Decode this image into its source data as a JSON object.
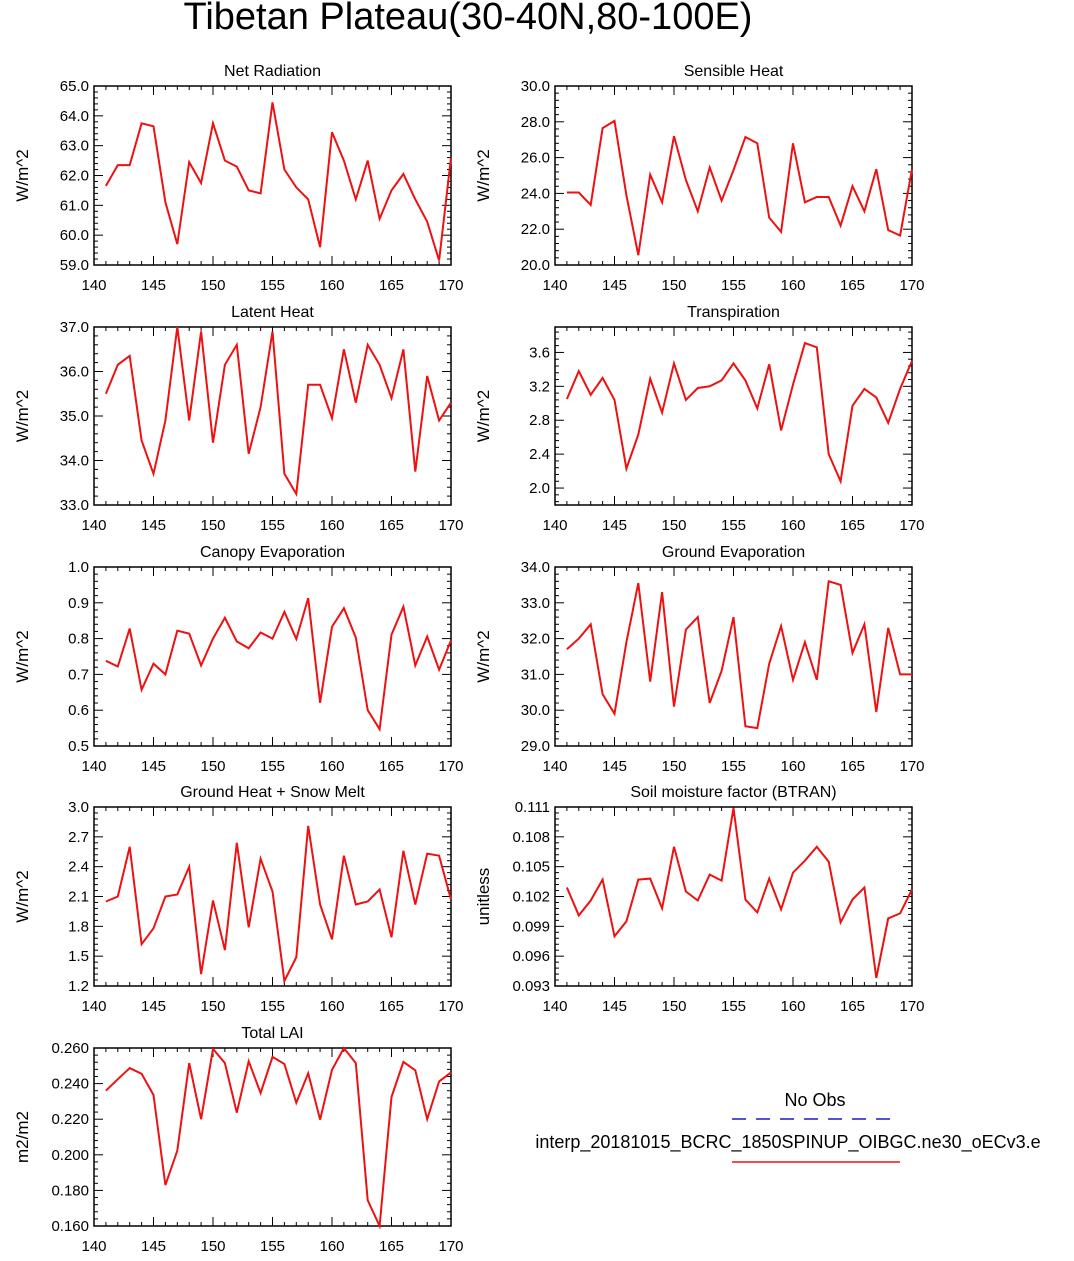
{
  "page_title": "Tibetan Plateau(30-40N,80-100E)",
  "colors": {
    "series": "#ee1111",
    "obs": "#1a1acc",
    "axis": "#000000"
  },
  "legend": {
    "obs_label": "No Obs",
    "model_label": "interp_20181015_BCRC_1850SPINUP_OIBGC.ne30_oECv3.e"
  },
  "chart_data": [
    {
      "type": "line",
      "title": "Net Radiation",
      "ylabel": "W/m^2",
      "xlim": [
        140,
        170
      ],
      "ylim": [
        59.0,
        65.0
      ],
      "yticks": [
        "59.0",
        "60.0",
        "61.0",
        "62.0",
        "63.0",
        "64.0",
        "65.0"
      ],
      "xticks": [
        "140",
        "145",
        "150",
        "155",
        "160",
        "165",
        "170"
      ],
      "x": [
        141,
        142,
        143,
        144,
        145,
        146,
        147,
        148,
        149,
        150,
        151,
        152,
        153,
        154,
        155,
        156,
        157,
        158,
        159,
        160,
        161,
        162,
        163,
        164,
        165,
        166,
        167,
        168,
        169,
        170
      ],
      "series": [
        {
          "name": "interp_20181015_BCRC_1850SPINUP_OIBGC.ne30_oECv3.e",
          "values": [
            61.65,
            62.35,
            62.35,
            63.75,
            63.65,
            61.1,
            59.7,
            62.45,
            61.75,
            63.75,
            62.5,
            62.3,
            61.5,
            61.4,
            64.45,
            62.2,
            61.6,
            61.2,
            59.6,
            63.45,
            62.5,
            61.2,
            62.5,
            60.55,
            61.5,
            62.05,
            61.2,
            60.45,
            59.15,
            62.6
          ]
        }
      ]
    },
    {
      "type": "line",
      "title": "Sensible Heat",
      "ylabel": "W/m^2",
      "xlim": [
        140,
        170
      ],
      "ylim": [
        20.0,
        30.0
      ],
      "yticks": [
        "20.0",
        "22.0",
        "24.0",
        "26.0",
        "28.0",
        "30.0"
      ],
      "xticks": [
        "140",
        "145",
        "150",
        "155",
        "160",
        "165",
        "170"
      ],
      "x": [
        141,
        142,
        143,
        144,
        145,
        146,
        147,
        148,
        149,
        150,
        151,
        152,
        153,
        154,
        155,
        156,
        157,
        158,
        159,
        160,
        161,
        162,
        163,
        164,
        165,
        166,
        167,
        168,
        169,
        170
      ],
      "series": [
        {
          "name": "interp_20181015_BCRC_1850SPINUP_OIBGC.ne30_oECv3.e",
          "values": [
            24.05,
            24.05,
            23.35,
            27.65,
            28.05,
            23.9,
            20.55,
            25.05,
            23.5,
            27.2,
            24.75,
            23.0,
            25.45,
            23.6,
            25.3,
            27.15,
            26.8,
            22.65,
            21.85,
            26.8,
            23.5,
            23.8,
            23.8,
            22.2,
            24.4,
            23.0,
            25.35,
            21.95,
            21.65,
            25.35
          ]
        }
      ]
    },
    {
      "type": "line",
      "title": "Latent Heat",
      "ylabel": "W/m^2",
      "xlim": [
        140,
        170
      ],
      "ylim": [
        33.0,
        37.0
      ],
      "yticks": [
        "33.0",
        "34.0",
        "35.0",
        "36.0",
        "37.0"
      ],
      "xticks": [
        "140",
        "145",
        "150",
        "155",
        "160",
        "165",
        "170"
      ],
      "x": [
        141,
        142,
        143,
        144,
        145,
        146,
        147,
        148,
        149,
        150,
        151,
        152,
        153,
        154,
        155,
        156,
        157,
        158,
        159,
        160,
        161,
        162,
        163,
        164,
        165,
        166,
        167,
        168,
        169,
        170
      ],
      "series": [
        {
          "name": "interp_20181015_BCRC_1850SPINUP_OIBGC.ne30_oECv3.e",
          "values": [
            35.5,
            36.15,
            36.35,
            34.45,
            33.7,
            34.9,
            37.0,
            34.9,
            36.9,
            34.4,
            36.15,
            36.6,
            34.15,
            35.2,
            36.9,
            33.7,
            33.25,
            35.7,
            35.7,
            34.95,
            36.5,
            35.3,
            36.6,
            36.15,
            35.4,
            36.5,
            33.75,
            35.9,
            34.9,
            35.3
          ]
        }
      ]
    },
    {
      "type": "line",
      "title": "Transpiration",
      "ylabel": "W/m^2",
      "xlim": [
        140,
        170
      ],
      "ylim": [
        1.8,
        3.9
      ],
      "yticks": [
        "2.0",
        "2.4",
        "2.8",
        "3.2",
        "3.6"
      ],
      "xticks": [
        "140",
        "145",
        "150",
        "155",
        "160",
        "165",
        "170"
      ],
      "x": [
        141,
        142,
        143,
        144,
        145,
        146,
        147,
        148,
        149,
        150,
        151,
        152,
        153,
        154,
        155,
        156,
        157,
        158,
        159,
        160,
        161,
        162,
        163,
        164,
        165,
        166,
        167,
        168,
        169,
        170
      ],
      "series": [
        {
          "name": "interp_20181015_BCRC_1850SPINUP_OIBGC.ne30_oECv3.e",
          "values": [
            3.05,
            3.38,
            3.1,
            3.3,
            3.04,
            2.23,
            2.63,
            3.29,
            2.89,
            3.47,
            3.04,
            3.18,
            3.2,
            3.27,
            3.47,
            3.27,
            2.94,
            3.46,
            2.68,
            3.22,
            3.71,
            3.66,
            2.4,
            2.08,
            2.97,
            3.17,
            3.07,
            2.77,
            3.17,
            3.5
          ]
        }
      ]
    },
    {
      "type": "line",
      "title": "Canopy Evaporation",
      "ylabel": "W/m^2",
      "xlim": [
        140,
        170
      ],
      "ylim": [
        0.5,
        1.0
      ],
      "yticks": [
        "0.5",
        "0.6",
        "0.7",
        "0.8",
        "0.9",
        "1.0"
      ],
      "xticks": [
        "140",
        "145",
        "150",
        "155",
        "160",
        "165",
        "170"
      ],
      "x": [
        141,
        142,
        143,
        144,
        145,
        146,
        147,
        148,
        149,
        150,
        151,
        152,
        153,
        154,
        155,
        156,
        157,
        158,
        159,
        160,
        161,
        162,
        163,
        164,
        165,
        166,
        167,
        168,
        169,
        170
      ],
      "series": [
        {
          "name": "interp_20181015_BCRC_1850SPINUP_OIBGC.ne30_oECv3.e",
          "values": [
            0.738,
            0.722,
            0.828,
            0.657,
            0.73,
            0.7,
            0.822,
            0.814,
            0.725,
            0.8,
            0.858,
            0.792,
            0.773,
            0.817,
            0.8,
            0.875,
            0.799,
            0.913,
            0.621,
            0.833,
            0.885,
            0.803,
            0.6,
            0.547,
            0.811,
            0.889,
            0.725,
            0.806,
            0.713,
            0.795
          ]
        }
      ]
    },
    {
      "type": "line",
      "title": "Ground Evaporation",
      "ylabel": "W/m^2",
      "xlim": [
        140,
        170
      ],
      "ylim": [
        29.0,
        34.0
      ],
      "yticks": [
        "29.0",
        "30.0",
        "31.0",
        "32.0",
        "33.0",
        "34.0"
      ],
      "xticks": [
        "140",
        "145",
        "150",
        "155",
        "160",
        "165",
        "170"
      ],
      "x": [
        141,
        142,
        143,
        144,
        145,
        146,
        147,
        148,
        149,
        150,
        151,
        152,
        153,
        154,
        155,
        156,
        157,
        158,
        159,
        160,
        161,
        162,
        163,
        164,
        165,
        166,
        167,
        168,
        169,
        170
      ],
      "series": [
        {
          "name": "interp_20181015_BCRC_1850SPINUP_OIBGC.ne30_oECv3.e",
          "values": [
            31.7,
            32.0,
            32.4,
            30.45,
            29.9,
            31.9,
            33.55,
            30.8,
            33.3,
            30.1,
            32.25,
            32.6,
            30.2,
            31.1,
            32.6,
            29.55,
            29.5,
            31.3,
            32.35,
            30.85,
            31.9,
            30.85,
            33.6,
            33.5,
            31.6,
            32.4,
            29.95,
            32.3,
            31.0,
            31.0
          ]
        }
      ]
    },
    {
      "type": "line",
      "title": "Ground Heat + Snow Melt",
      "ylabel": "W/m^2",
      "xlim": [
        140,
        170
      ],
      "ylim": [
        1.2,
        3.0
      ],
      "yticks": [
        "1.2",
        "1.5",
        "1.8",
        "2.1",
        "2.4",
        "2.7",
        "3.0"
      ],
      "xticks": [
        "140",
        "145",
        "150",
        "155",
        "160",
        "165",
        "170"
      ],
      "x": [
        141,
        142,
        143,
        144,
        145,
        146,
        147,
        148,
        149,
        150,
        151,
        152,
        153,
        154,
        155,
        156,
        157,
        158,
        159,
        160,
        161,
        162,
        163,
        164,
        165,
        166,
        167,
        168,
        169,
        170
      ],
      "series": [
        {
          "name": "interp_20181015_BCRC_1850SPINUP_OIBGC.ne30_oECv3.e",
          "values": [
            2.05,
            2.1,
            2.6,
            1.62,
            1.78,
            2.1,
            2.12,
            2.4,
            1.32,
            2.06,
            1.56,
            2.64,
            1.79,
            2.48,
            2.15,
            1.25,
            1.49,
            2.81,
            2.02,
            1.67,
            2.51,
            2.02,
            2.05,
            2.17,
            1.69,
            2.56,
            2.02,
            2.53,
            2.51,
            2.07
          ]
        }
      ]
    },
    {
      "type": "line",
      "title": "Soil moisture factor (BTRAN)",
      "ylabel": "unitless",
      "xlim": [
        140,
        170
      ],
      "ylim": [
        0.093,
        0.111
      ],
      "yticks": [
        "0.093",
        "0.096",
        "0.099",
        "0.102",
        "0.105",
        "0.108",
        "0.111"
      ],
      "xticks": [
        "140",
        "145",
        "150",
        "155",
        "160",
        "165",
        "170"
      ],
      "x": [
        141,
        142,
        143,
        144,
        145,
        146,
        147,
        148,
        149,
        150,
        151,
        152,
        153,
        154,
        155,
        156,
        157,
        158,
        159,
        160,
        161,
        162,
        163,
        164,
        165,
        166,
        167,
        168,
        169,
        170
      ],
      "series": [
        {
          "name": "interp_20181015_BCRC_1850SPINUP_OIBGC.ne30_oECv3.e",
          "values": [
            0.1029,
            0.1001,
            0.1016,
            0.1037,
            0.098,
            0.0995,
            0.1037,
            0.1038,
            0.1008,
            0.107,
            0.1025,
            0.1016,
            0.1042,
            0.1036,
            0.1109,
            0.1017,
            0.1004,
            0.1038,
            0.1007,
            0.1044,
            0.1056,
            0.107,
            0.1055,
            0.0994,
            0.1017,
            0.1029,
            0.0938,
            0.0998,
            0.1003,
            0.1027
          ]
        }
      ]
    },
    {
      "type": "line",
      "title": "Total LAI",
      "ylabel": "m2/m2",
      "xlim": [
        140,
        170
      ],
      "ylim": [
        0.16,
        0.26
      ],
      "yticks": [
        "0.160",
        "0.180",
        "0.200",
        "0.220",
        "0.240",
        "0.260"
      ],
      "xticks": [
        "140",
        "145",
        "150",
        "155",
        "160",
        "165",
        "170"
      ],
      "x": [
        141,
        142,
        143,
        144,
        145,
        146,
        147,
        148,
        149,
        150,
        151,
        152,
        153,
        154,
        155,
        156,
        157,
        158,
        159,
        160,
        161,
        162,
        163,
        164,
        165,
        166,
        167,
        168,
        169,
        170
      ],
      "series": [
        {
          "name": "interp_20181015_BCRC_1850SPINUP_OIBGC.ne30_oECv3.e",
          "values": [
            0.236,
            0.2425,
            0.2487,
            0.2455,
            0.2336,
            0.183,
            0.2023,
            0.2515,
            0.22,
            0.2595,
            0.2515,
            0.2237,
            0.2525,
            0.2347,
            0.255,
            0.251,
            0.2292,
            0.2458,
            0.2198,
            0.2477,
            0.26,
            0.2515,
            0.1745,
            0.16,
            0.2325,
            0.2522,
            0.2475,
            0.22,
            0.2412,
            0.2463
          ]
        }
      ]
    }
  ]
}
